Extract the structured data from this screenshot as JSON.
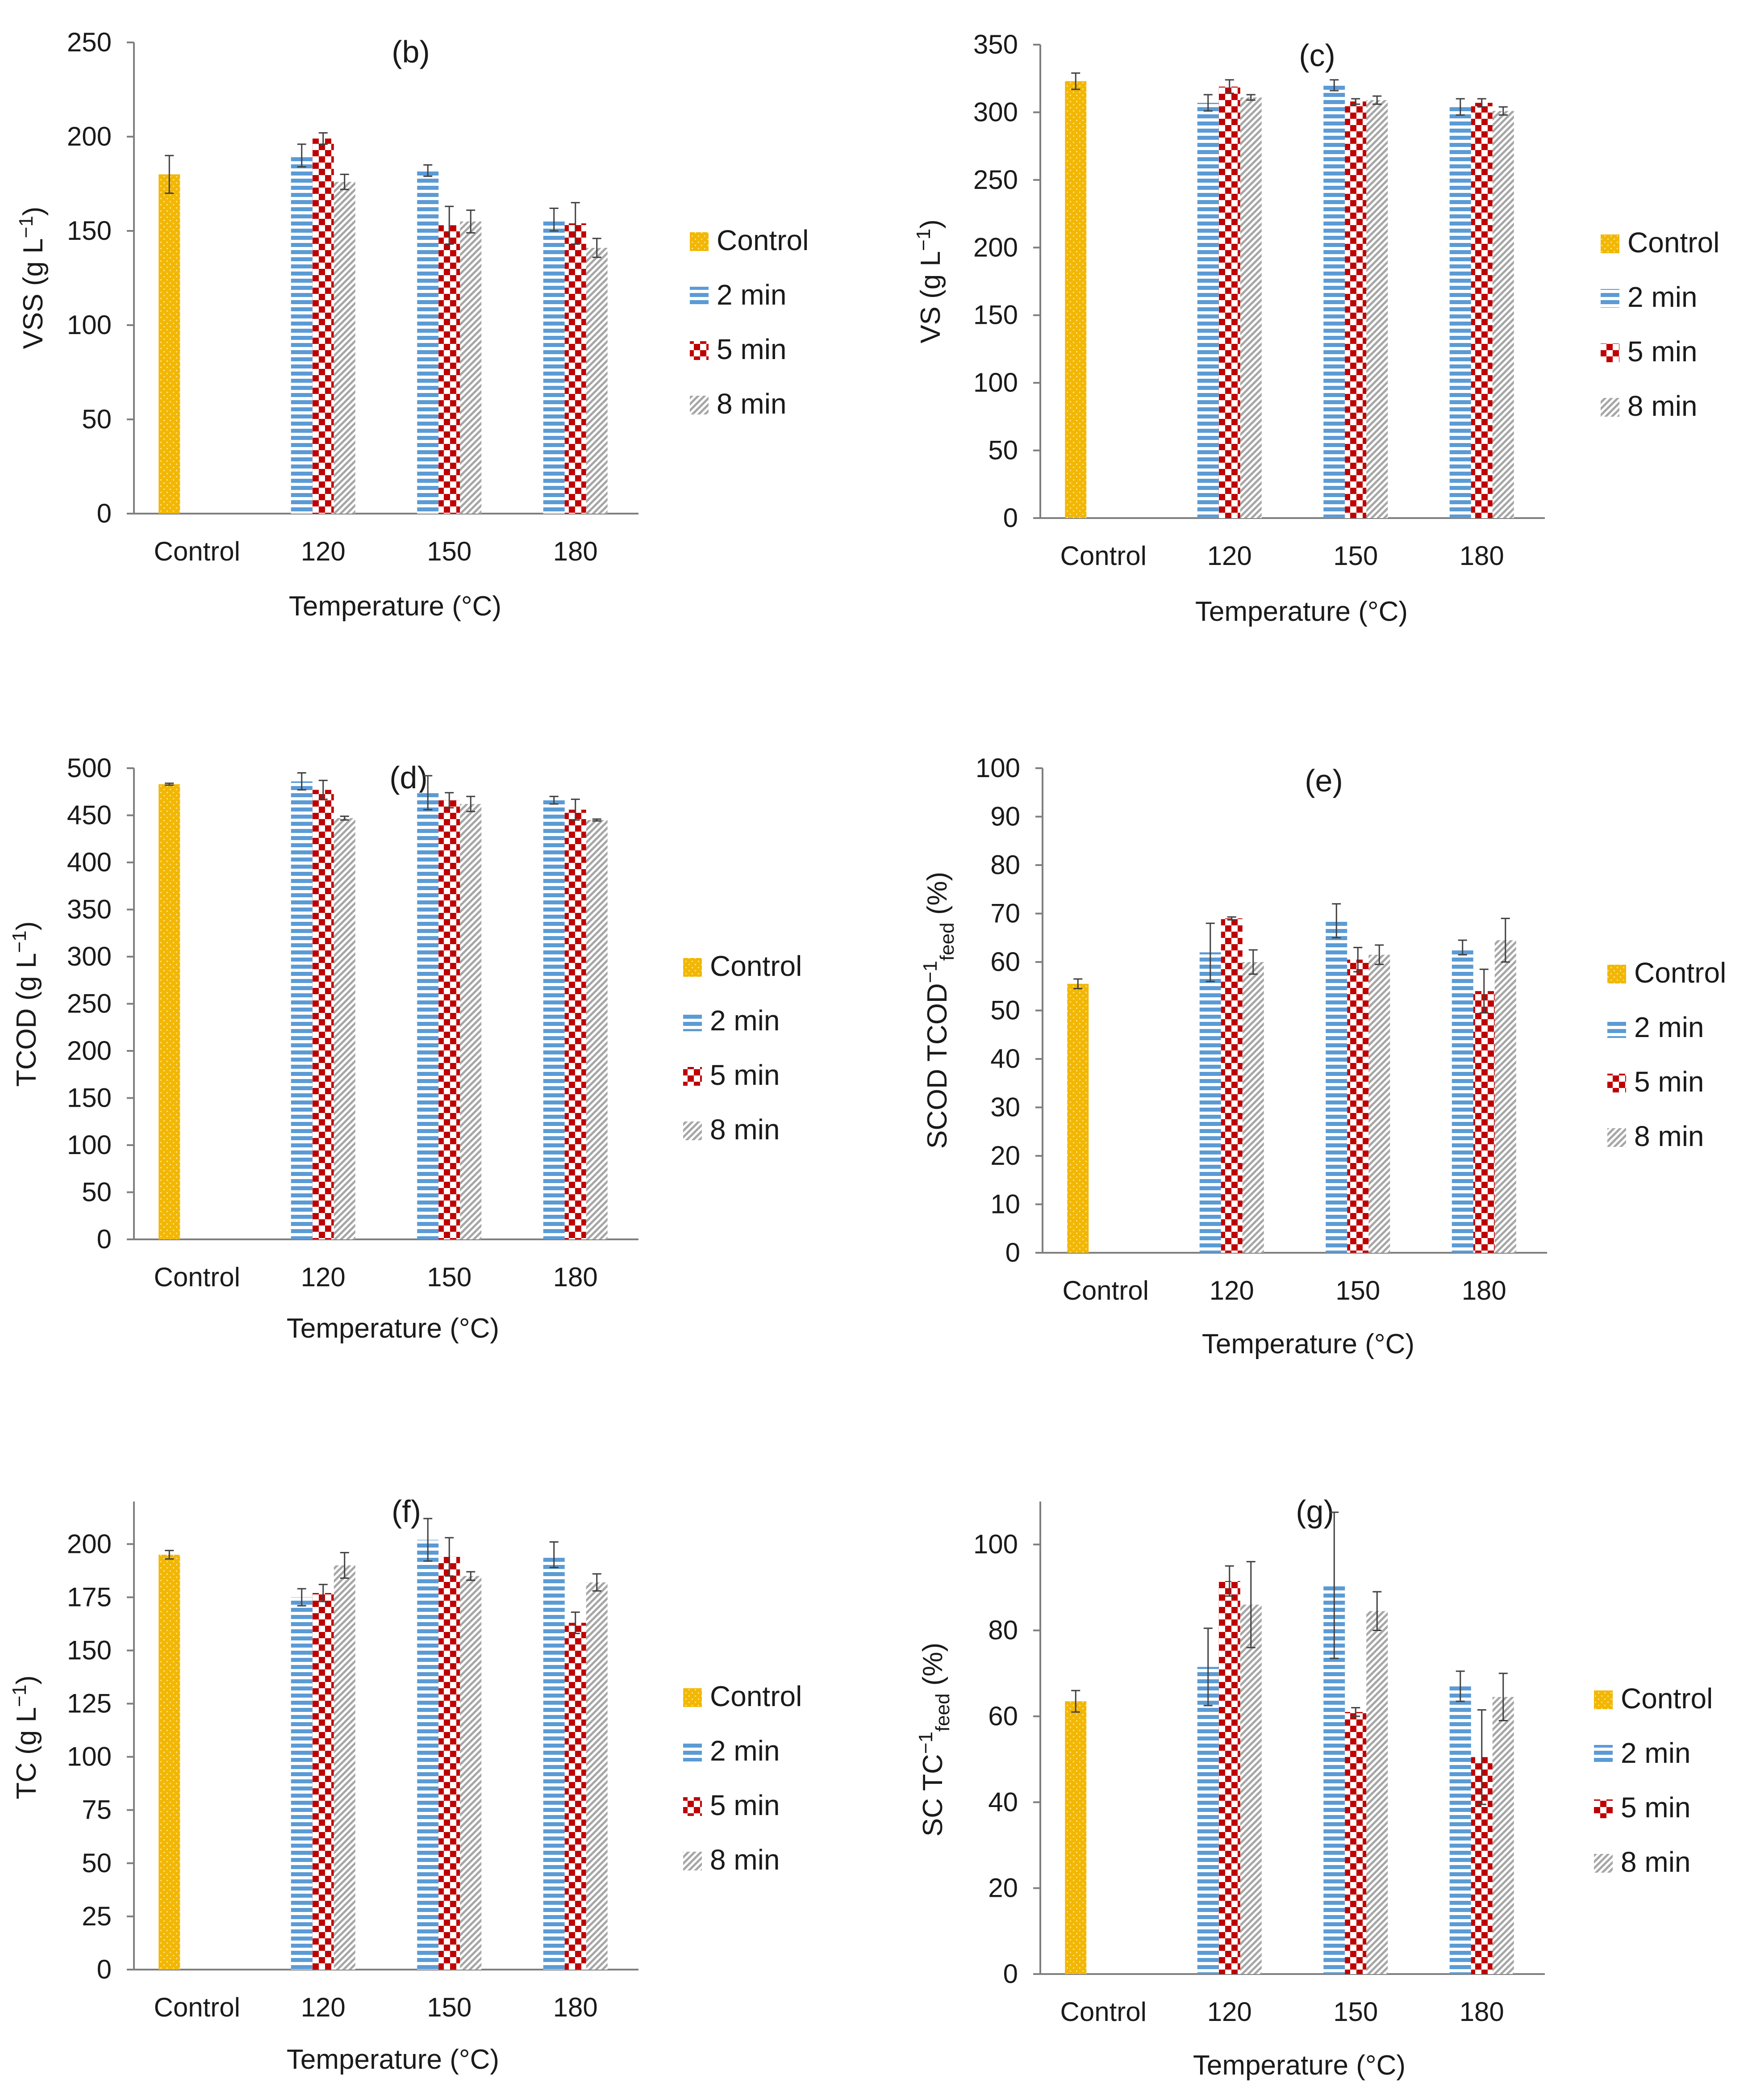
{
  "panel_b": {
    "tag": "(b)",
    "ylabel": "VSS (g L",
    "ylabel_sup": "−1",
    "ylabel_tail": ")",
    "xlabel": "Temperature (°C)",
    "legend": [
      "Control",
      "2 min",
      "5 min",
      "8 min"
    ]
  },
  "panel_c": {
    "tag": "(c)",
    "ylabel": "VS (g L",
    "ylabel_sup": "−1",
    "ylabel_tail": ")",
    "xlabel": "Temperature (°C)",
    "legend": [
      "Control",
      "2 min",
      "5 min",
      "8 min"
    ]
  },
  "panel_d": {
    "tag": "(d)",
    "ylabel": "TCOD (g L",
    "ylabel_sup": "−1",
    "ylabel_tail": ")",
    "xlabel": "Temperature (°C)",
    "legend": [
      "Control",
      "2 min",
      "5 min",
      "8 min"
    ]
  },
  "panel_e": {
    "tag": "(e)",
    "ylabel": "SCOD TCOD",
    "ylabel_sup": "−1",
    "ylabel_sub": "feed",
    "ylabel_tail": " (%)",
    "xlabel": "Temperature (°C)",
    "legend": [
      "Control",
      "2 min",
      "5 min",
      "8 min"
    ]
  },
  "panel_f": {
    "tag": "(f)",
    "ylabel": "TC (g L",
    "ylabel_sup": "−1",
    "ylabel_tail": ")",
    "xlabel": "Temperature (°C)",
    "legend": [
      "Control",
      "2 min",
      "5 min",
      "8 min"
    ]
  },
  "panel_g": {
    "tag": "(g)",
    "ylabel": "SC TC",
    "ylabel_sup": "−1",
    "ylabel_sub": "feed",
    "ylabel_tail": " (%)",
    "xlabel": "Temperature (°C)",
    "legend": [
      "Control",
      "2 min",
      "5 min",
      "8 min"
    ]
  },
  "colors": {
    "control": "#f2b705",
    "min2": "#5b9bd5",
    "min5": "#c00000",
    "min8": "#a6a6a6",
    "axis": "#7f7f7f"
  },
  "chart_data": [
    {
      "id": "b",
      "type": "bar",
      "categories": [
        "Control",
        "120",
        "150",
        "180"
      ],
      "ylim": [
        0,
        250
      ],
      "yticks": [
        0,
        50,
        100,
        150,
        200,
        250
      ],
      "control": {
        "value": 180,
        "err": 10
      },
      "series": [
        {
          "name": "2 min",
          "values": [
            null,
            190,
            182,
            156
          ],
          "errors": [
            null,
            6,
            3,
            6
          ]
        },
        {
          "name": "5 min",
          "values": [
            null,
            199,
            153,
            154
          ],
          "errors": [
            null,
            3,
            10,
            11
          ]
        },
        {
          "name": "8 min",
          "values": [
            null,
            176,
            155,
            141
          ],
          "errors": [
            null,
            4,
            6,
            5
          ]
        }
      ]
    },
    {
      "id": "c",
      "type": "bar",
      "categories": [
        "Control",
        "120",
        "150",
        "180"
      ],
      "ylim": [
        0,
        350
      ],
      "yticks": [
        0,
        50,
        100,
        150,
        200,
        250,
        300,
        350
      ],
      "control": {
        "value": 323,
        "err": 6
      },
      "series": [
        {
          "name": "2 min",
          "values": [
            null,
            307,
            320,
            304
          ],
          "errors": [
            null,
            6,
            4,
            6
          ]
        },
        {
          "name": "5 min",
          "values": [
            null,
            319,
            308,
            307
          ],
          "errors": [
            null,
            5,
            2,
            3
          ]
        },
        {
          "name": "8 min",
          "values": [
            null,
            311,
            309,
            301
          ],
          "errors": [
            null,
            2,
            3,
            3
          ]
        }
      ]
    },
    {
      "id": "d",
      "type": "bar",
      "categories": [
        "Control",
        "120",
        "150",
        "180"
      ],
      "ylim": [
        0,
        500
      ],
      "yticks": [
        0,
        50,
        100,
        150,
        200,
        250,
        300,
        350,
        400,
        450,
        500
      ],
      "control": {
        "value": 483,
        "err": 1
      },
      "series": [
        {
          "name": "2 min",
          "values": [
            null,
            486,
            474,
            466
          ],
          "errors": [
            null,
            9,
            18,
            4
          ]
        },
        {
          "name": "5 min",
          "values": [
            null,
            477,
            466,
            456
          ],
          "errors": [
            null,
            10,
            8,
            11
          ]
        },
        {
          "name": "8 min",
          "values": [
            null,
            447,
            462,
            445
          ],
          "errors": [
            null,
            2,
            8,
            1
          ]
        }
      ]
    },
    {
      "id": "e",
      "type": "bar",
      "categories": [
        "Control",
        "120",
        "150",
        "180"
      ],
      "ylim": [
        0,
        100
      ],
      "yticks": [
        0,
        10,
        20,
        30,
        40,
        50,
        60,
        70,
        80,
        90,
        100
      ],
      "control": {
        "value": 55.5,
        "err": 1
      },
      "series": [
        {
          "name": "2 min",
          "values": [
            null,
            62,
            68.5,
            63
          ],
          "errors": [
            null,
            6,
            3.5,
            1.5
          ]
        },
        {
          "name": "5 min",
          "values": [
            null,
            69,
            60.5,
            54
          ],
          "errors": [
            null,
            0.3,
            2.5,
            4.5
          ]
        },
        {
          "name": "8 min",
          "values": [
            null,
            60,
            61.5,
            64.5
          ],
          "errors": [
            null,
            2.5,
            2,
            4.5
          ]
        }
      ]
    },
    {
      "id": "f",
      "type": "bar",
      "categories": [
        "Control",
        "120",
        "150",
        "180"
      ],
      "ylim": [
        0,
        220
      ],
      "yticks": [
        0,
        25,
        50,
        75,
        100,
        125,
        150,
        175,
        200
      ],
      "control": {
        "value": 195,
        "err": 2
      },
      "series": [
        {
          "name": "2 min",
          "values": [
            null,
            175,
            202,
            195
          ],
          "errors": [
            null,
            4,
            10,
            6
          ]
        },
        {
          "name": "5 min",
          "values": [
            null,
            177,
            194,
            163
          ],
          "errors": [
            null,
            4,
            9,
            5
          ]
        },
        {
          "name": "8 min",
          "values": [
            null,
            190,
            185,
            182
          ],
          "errors": [
            null,
            6,
            2,
            4
          ]
        }
      ]
    },
    {
      "id": "g",
      "type": "bar",
      "categories": [
        "Control",
        "120",
        "150",
        "180"
      ],
      "ylim": [
        0,
        110
      ],
      "yticks": [
        0,
        20,
        40,
        60,
        80,
        100
      ],
      "control": {
        "value": 63.5,
        "err": 2.5
      },
      "series": [
        {
          "name": "2 min",
          "values": [
            null,
            71.5,
            90.5,
            67
          ],
          "errors": [
            null,
            9,
            17,
            3.5
          ]
        },
        {
          "name": "5 min",
          "values": [
            null,
            91.5,
            61,
            50.5
          ],
          "errors": [
            null,
            3.5,
            1,
            11
          ]
        },
        {
          "name": "8 min",
          "values": [
            null,
            86,
            84.5,
            64.5
          ],
          "errors": [
            null,
            10,
            4.5,
            5.5
          ]
        }
      ]
    }
  ]
}
